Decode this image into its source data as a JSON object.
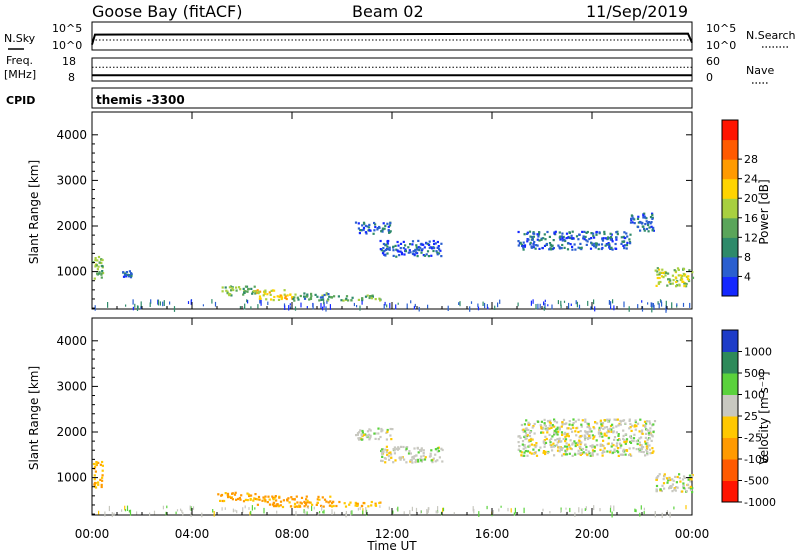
{
  "header": {
    "station": "Goose Bay (fitACF)",
    "beam": "Beam 02",
    "date": "11/Sep/2019"
  },
  "strips": {
    "nsky_label": "N.Sky",
    "nsearch_label": "N.Search",
    "freq_label_1": "Freq.",
    "freq_label_2": "[MHz]",
    "nave_label": "Nave",
    "cpid_label": "CPID",
    "cpid_value": "themis -3300",
    "noise_ticks_left": [
      "10^5",
      "10^0"
    ],
    "noise_ticks_right": [
      "10^5",
      "10^0"
    ],
    "freq_ticks": [
      "18",
      "8"
    ],
    "nave_ticks": [
      "60",
      "0"
    ]
  },
  "axes": {
    "ylabel": "Slant Range [km]",
    "xlabel": "Time UT",
    "xticks": [
      "00:00",
      "04:00",
      "08:00",
      "12:00",
      "16:00",
      "20:00",
      "00:00"
    ],
    "yticks": [
      "1000",
      "2000",
      "3000",
      "4000"
    ]
  },
  "colorbars": {
    "power": {
      "label": "Power [dB]",
      "ticks": [
        "4",
        "8",
        "12",
        "16",
        "20",
        "24",
        "28"
      ],
      "colors": [
        "#1428ff",
        "#2a5fd0",
        "#2e8a6a",
        "#5aa55a",
        "#a8d040",
        "#ffd400",
        "#ff9a00",
        "#ff5a00",
        "#ff1400"
      ]
    },
    "velocity": {
      "label": "Velocity [m s⁻¹]",
      "ticks": [
        "1000",
        "500",
        "100",
        "25",
        "-25",
        "-100",
        "-500",
        "-1000"
      ],
      "colors": [
        "#1e3cc8",
        "#2e8a5a",
        "#5ad23c",
        "#c8c8c0",
        "#ffc800",
        "#ff9a00",
        "#ff5a00",
        "#ff1400"
      ]
    }
  },
  "chart_data": {
    "type": "heatmap",
    "x_unit": "hours UT",
    "y_unit": "km",
    "xlim": [
      0,
      24
    ],
    "ylim": [
      180,
      4500
    ],
    "power_regions": [
      {
        "x": [
          0.0,
          0.4
        ],
        "y": [
          800,
          1400
        ],
        "level": 16
      },
      {
        "x": [
          1.2,
          1.6
        ],
        "y": [
          900,
          1050
        ],
        "level": 6
      },
      {
        "x": [
          5.0,
          6.5
        ],
        "y": [
          500,
          700
        ],
        "level": 14
      },
      {
        "x": [
          6.5,
          8.0
        ],
        "y": [
          380,
          620
        ],
        "level": 22
      },
      {
        "x": [
          8.0,
          9.5
        ],
        "y": [
          380,
          560
        ],
        "level": 12
      },
      {
        "x": [
          9.5,
          11.5
        ],
        "y": [
          380,
          500
        ],
        "level": 14
      },
      {
        "x": [
          10.5,
          12.0
        ],
        "y": [
          1850,
          2100
        ],
        "level": 6
      },
      {
        "x": [
          11.5,
          14.0
        ],
        "y": [
          1350,
          1700
        ],
        "level": 6
      },
      {
        "x": [
          17.0,
          21.5
        ],
        "y": [
          1500,
          1900
        ],
        "level": 7
      },
      {
        "x": [
          21.5,
          22.5
        ],
        "y": [
          1900,
          2300
        ],
        "level": 7
      },
      {
        "x": [
          22.5,
          24.0
        ],
        "y": [
          700,
          1100
        ],
        "level": 18
      },
      {
        "x": [
          0.0,
          24.0
        ],
        "y": [
          180,
          320
        ],
        "level": 6
      }
    ],
    "velocity_regions": [
      {
        "x": [
          0.0,
          0.4
        ],
        "y": [
          800,
          1400
        ],
        "level": -100
      },
      {
        "x": [
          5.0,
          6.5
        ],
        "y": [
          500,
          700
        ],
        "level": -100
      },
      {
        "x": [
          6.5,
          9.5
        ],
        "y": [
          380,
          620
        ],
        "level": -120
      },
      {
        "x": [
          9.5,
          11.5
        ],
        "y": [
          380,
          500
        ],
        "level": -90
      },
      {
        "x": [
          10.5,
          12.0
        ],
        "y": [
          1850,
          2100
        ],
        "level": 0
      },
      {
        "x": [
          11.5,
          14.0
        ],
        "y": [
          1350,
          1700
        ],
        "level": 0
      },
      {
        "x": [
          17.0,
          22.5
        ],
        "y": [
          1500,
          2300
        ],
        "level": 0
      },
      {
        "x": [
          22.5,
          24.0
        ],
        "y": [
          700,
          1100
        ],
        "level": 0
      },
      {
        "x": [
          0.0,
          24.0
        ],
        "y": [
          180,
          320
        ],
        "level": 10
      }
    ],
    "nsky_level": 0.55,
    "nsearch_level": 0.5,
    "freq_level": 0.25,
    "nave_level": 0.6
  }
}
